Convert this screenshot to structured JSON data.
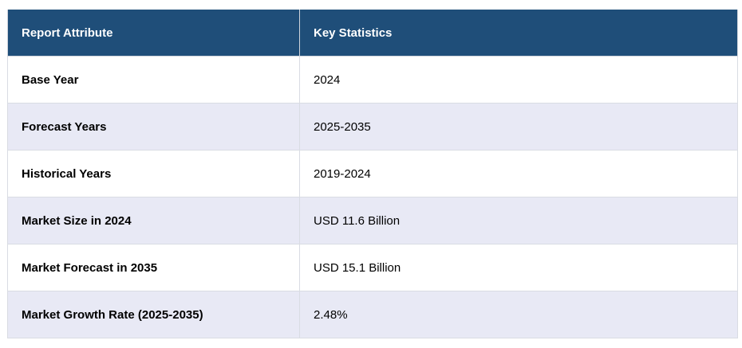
{
  "table": {
    "headers": [
      "Report Attribute",
      "Key Statistics"
    ],
    "rows": [
      {
        "attribute": "Base Year",
        "value": "2024"
      },
      {
        "attribute": "Forecast Years",
        "value": "2025-2035"
      },
      {
        "attribute": "Historical Years",
        "value": "2019-2024"
      },
      {
        "attribute": "Market Size in 2024",
        "value": "USD 11.6 Billion"
      },
      {
        "attribute": "Market Forecast in 2035",
        "value": "USD 15.1 Billion"
      },
      {
        "attribute": "Market Growth Rate (2025-2035)",
        "value": "2.48%"
      }
    ]
  },
  "colors": {
    "header_bg": "#1f4e79",
    "header_text": "#ffffff",
    "row_alt_bg": "#e8e9f5",
    "row_bg": "#ffffff"
  }
}
